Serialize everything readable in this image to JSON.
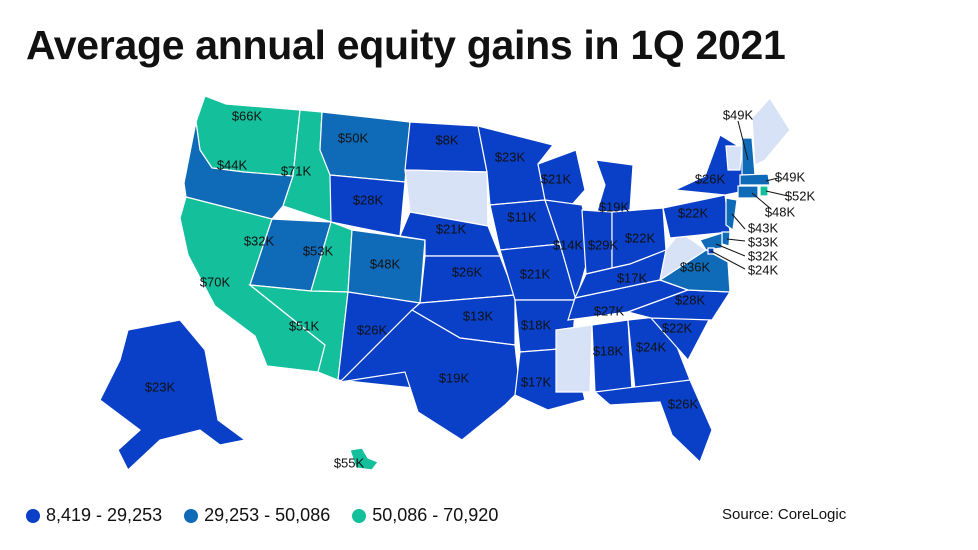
{
  "title": "Average annual equity gains in 1Q 2021",
  "source": "Source: CoreLogic",
  "colors": {
    "low": "#0a3fc8",
    "mid": "#0f6bb8",
    "high": "#14bf9c",
    "nodata": "#d7e2f6",
    "border": "#ffffff"
  },
  "legend": [
    {
      "label": "8,419 - 29,253",
      "color": "#0a3fc8"
    },
    {
      "label": "29,253 - 50,086",
      "color": "#0f6bb8"
    },
    {
      "label": "50,086 - 70,920",
      "color": "#14bf9c"
    }
  ],
  "states": [
    {
      "state": "WA",
      "label": "$66K",
      "bin": "high"
    },
    {
      "state": "OR",
      "label": "$44K",
      "bin": "mid"
    },
    {
      "state": "CA",
      "label": "$70K",
      "bin": "high"
    },
    {
      "state": "ID",
      "label": "$71K",
      "bin": "high"
    },
    {
      "state": "NV",
      "label": "$32K",
      "bin": "mid"
    },
    {
      "state": "MT",
      "label": "$50K",
      "bin": "mid"
    },
    {
      "state": "WY",
      "label": "$28K",
      "bin": "low"
    },
    {
      "state": "UT",
      "label": "$53K",
      "bin": "high"
    },
    {
      "state": "AZ",
      "label": "$51K",
      "bin": "high"
    },
    {
      "state": "CO",
      "label": "$48K",
      "bin": "mid"
    },
    {
      "state": "NM",
      "label": "$26K",
      "bin": "low"
    },
    {
      "state": "ND",
      "label": "$8K",
      "bin": "low"
    },
    {
      "state": "SD",
      "label": "",
      "bin": "nodata"
    },
    {
      "state": "NE",
      "label": "$21K",
      "bin": "low"
    },
    {
      "state": "KS",
      "label": "$26K",
      "bin": "low"
    },
    {
      "state": "OK",
      "label": "$13K",
      "bin": "low"
    },
    {
      "state": "TX",
      "label": "$19K",
      "bin": "low"
    },
    {
      "state": "MN",
      "label": "$23K",
      "bin": "low"
    },
    {
      "state": "IA",
      "label": "$11K",
      "bin": "low"
    },
    {
      "state": "MO",
      "label": "$21K",
      "bin": "low"
    },
    {
      "state": "AR",
      "label": "$18K",
      "bin": "low"
    },
    {
      "state": "LA",
      "label": "$17K",
      "bin": "low"
    },
    {
      "state": "WI",
      "label": "$21K",
      "bin": "low"
    },
    {
      "state": "IL",
      "label": "$14K",
      "bin": "low"
    },
    {
      "state": "MI",
      "label": "$19K",
      "bin": "low"
    },
    {
      "state": "IN",
      "label": "$29K",
      "bin": "low"
    },
    {
      "state": "OH",
      "label": "$22K",
      "bin": "low"
    },
    {
      "state": "KY",
      "label": "$17K",
      "bin": "low"
    },
    {
      "state": "TN",
      "label": "$27K",
      "bin": "low"
    },
    {
      "state": "MS",
      "label": "",
      "bin": "nodata"
    },
    {
      "state": "AL",
      "label": "$18K",
      "bin": "low"
    },
    {
      "state": "GA",
      "label": "$24K",
      "bin": "low"
    },
    {
      "state": "FL",
      "label": "$26K",
      "bin": "low"
    },
    {
      "state": "SC",
      "label": "$22K",
      "bin": "low"
    },
    {
      "state": "NC",
      "label": "$28K",
      "bin": "low"
    },
    {
      "state": "VA",
      "label": "$36K",
      "bin": "mid"
    },
    {
      "state": "WV",
      "label": "",
      "bin": "nodata"
    },
    {
      "state": "PA",
      "label": "$22K",
      "bin": "low"
    },
    {
      "state": "NY",
      "label": "$26K",
      "bin": "low"
    },
    {
      "state": "VT",
      "label": "",
      "bin": "nodata"
    },
    {
      "state": "NH",
      "label": "$49K",
      "bin": "mid"
    },
    {
      "state": "ME",
      "label": "",
      "bin": "nodata"
    },
    {
      "state": "MA",
      "label": "$49K",
      "bin": "mid"
    },
    {
      "state": "RI",
      "label": "$52K",
      "bin": "high"
    },
    {
      "state": "CT",
      "label": "$48K",
      "bin": "mid"
    },
    {
      "state": "NJ",
      "label": "$43K",
      "bin": "mid"
    },
    {
      "state": "DE",
      "label": "$33K",
      "bin": "mid"
    },
    {
      "state": "MD",
      "label": "$32K",
      "bin": "mid"
    },
    {
      "state": "DC",
      "label": "$24K",
      "bin": "low"
    },
    {
      "state": "AK",
      "label": "$23K",
      "bin": "low"
    },
    {
      "state": "HI",
      "label": "$55K",
      "bin": "high"
    }
  ]
}
